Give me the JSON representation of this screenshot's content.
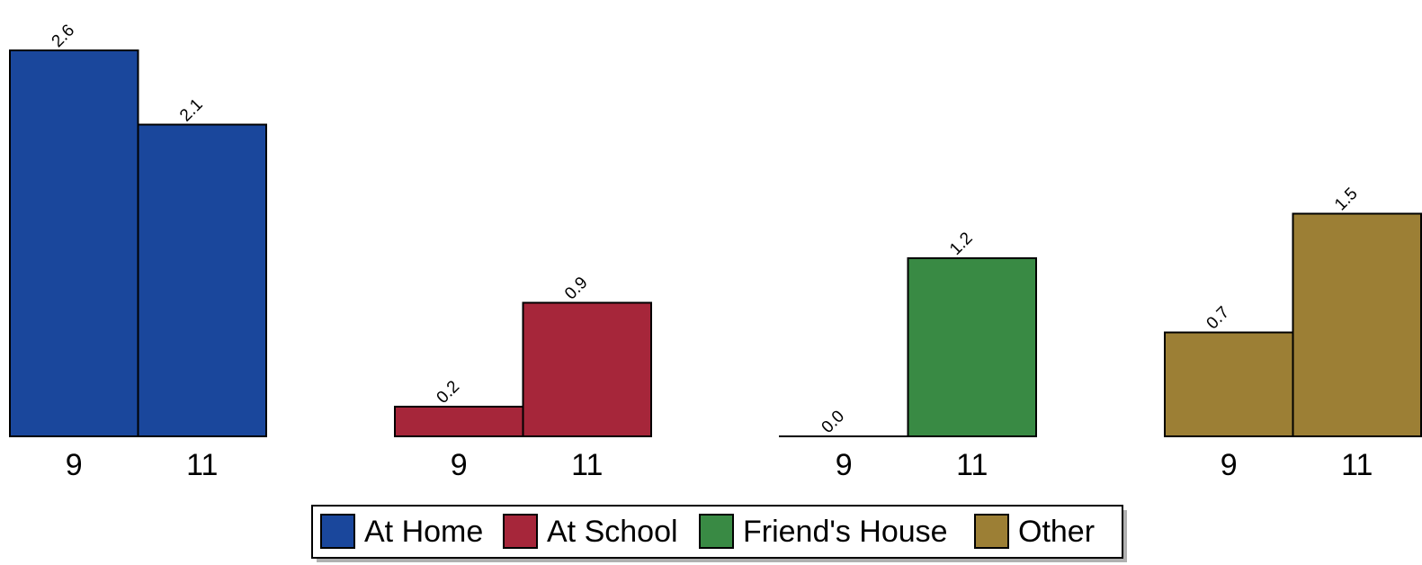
{
  "chart_data": {
    "type": "bar",
    "title": "",
    "xlabel": "",
    "ylabel": "",
    "ylim": [
      0,
      2.6
    ],
    "grid": false,
    "legend_placement": "bottom-center",
    "categories": [
      "9",
      "11"
    ],
    "series": [
      {
        "name": "At Home",
        "color": "#1a479c",
        "values": [
          2.6,
          2.1
        ],
        "labels": [
          "2.6",
          "2.1"
        ]
      },
      {
        "name": "At School",
        "color": "#a6263a",
        "values": [
          0.2,
          0.9
        ],
        "labels": [
          "0.2",
          "0.9"
        ]
      },
      {
        "name": "Friend's House",
        "color": "#398a44",
        "values": [
          0.0,
          1.2
        ],
        "labels": [
          "0.0",
          "1.2"
        ]
      },
      {
        "name": "Other",
        "color": "#9c7f35",
        "values": [
          0.7,
          1.5
        ],
        "labels": [
          "0.7",
          "1.5"
        ]
      }
    ]
  }
}
